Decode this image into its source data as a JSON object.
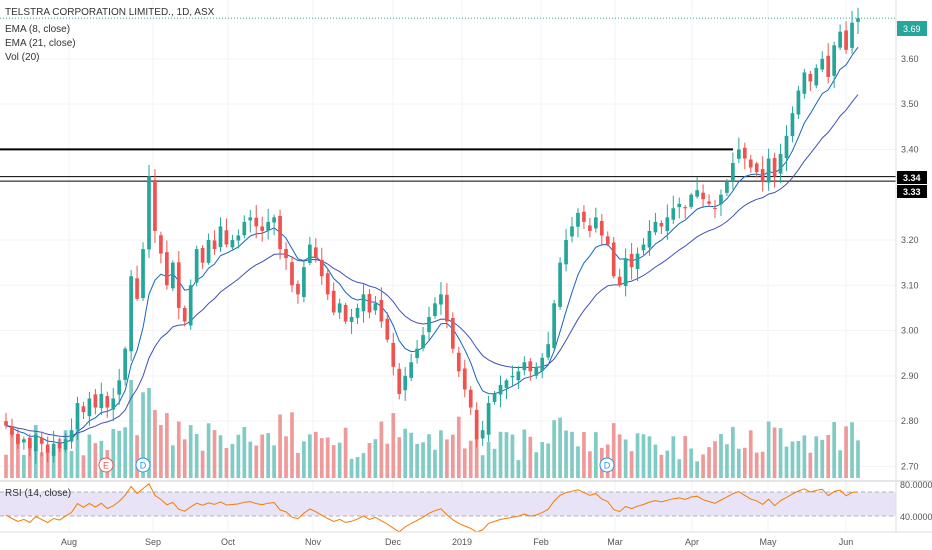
{
  "header": {
    "symbol": "TELSTRA CORPORATION LIMITED., 1D, ASX",
    "indicators": [
      "EMA (8, close)",
      "EMA (21, close)",
      "Vol (20)"
    ]
  },
  "rsi_panel": {
    "label": "RSI (14, close)",
    "tick_labels": [
      "80.0000",
      "40.0000"
    ]
  },
  "price_labels": {
    "last": "3.69",
    "level_a": "3.34",
    "level_b": "3.33"
  },
  "markers": [
    "E",
    "D",
    "D"
  ],
  "colors": {
    "up": "#26a69a",
    "down": "#ef5350",
    "up_vol": "#80cbc4",
    "down_vol": "#ef9a9a",
    "ema8": "#1565c0",
    "ema21": "#3f51b5",
    "rsi": "#f57c00",
    "last_price": "#26a69a"
  },
  "chart_data": [
    {
      "type": "candlestick",
      "title": "TELSTRA CORPORATION LIMITED., 1D, ASX",
      "x_tick_labels": [
        "Aug",
        "Sep",
        "Oct",
        "Nov",
        "Dec",
        "2019",
        "Feb",
        "Mar",
        "Apr",
        "May",
        "Jun"
      ],
      "y_tick_labels": [
        "3.60",
        "3.50",
        "3.40",
        "3.20",
        "3.10",
        "3.00",
        "2.90",
        "2.80",
        "2.70"
      ],
      "ylim": [
        2.67,
        3.73
      ],
      "horizontal_levels": [
        3.4,
        3.34,
        3.33
      ],
      "closes": [
        2.79,
        2.77,
        2.75,
        2.76,
        2.74,
        2.77,
        2.75,
        2.73,
        2.75,
        2.74,
        2.76,
        2.78,
        2.84,
        2.82,
        2.85,
        2.83,
        2.86,
        2.83,
        2.85,
        2.89,
        2.96,
        3.12,
        3.07,
        3.18,
        3.34,
        3.22,
        3.17,
        3.1,
        3.15,
        3.05,
        3.02,
        3.1,
        3.18,
        3.15,
        3.2,
        3.18,
        3.23,
        3.19,
        3.2,
        3.21,
        3.24,
        3.25,
        3.23,
        3.22,
        3.24,
        3.25,
        3.18,
        3.16,
        3.1,
        3.08,
        3.14,
        3.19,
        3.16,
        3.12,
        3.08,
        3.04,
        3.06,
        3.02,
        3.03,
        3.05,
        3.08,
        3.04,
        3.06,
        3.02,
        2.98,
        2.92,
        2.86,
        2.9,
        2.93,
        2.96,
        2.99,
        3.03,
        3.06,
        3.08,
        3.02,
        2.96,
        2.91,
        2.87,
        2.83,
        2.76,
        2.78,
        2.84,
        2.86,
        2.88,
        2.89,
        2.9,
        2.91,
        2.93,
        2.91,
        2.92,
        2.94,
        2.97,
        3.06,
        3.15,
        3.2,
        3.23,
        3.26,
        3.24,
        3.22,
        3.25,
        3.21,
        3.19,
        3.12,
        3.1,
        3.16,
        3.14,
        3.17,
        3.19,
        3.22,
        3.24,
        3.23,
        3.25,
        3.27,
        3.28,
        3.27,
        3.3,
        3.31,
        3.29,
        3.28,
        3.27,
        3.3,
        3.33,
        3.37,
        3.4,
        3.38,
        3.36,
        3.35,
        3.33,
        3.38,
        3.34,
        3.39,
        3.43,
        3.48,
        3.53,
        3.57,
        3.55,
        3.58,
        3.6,
        3.56,
        3.63,
        3.66,
        3.62,
        3.68,
        3.69
      ],
      "ema_8_close": "overlay",
      "ema_21_close": "overlay"
    },
    {
      "type": "line",
      "title": "RSI (14, close)",
      "ylim": [
        30,
        85
      ],
      "reference_levels": [
        70,
        30
      ]
    }
  ]
}
